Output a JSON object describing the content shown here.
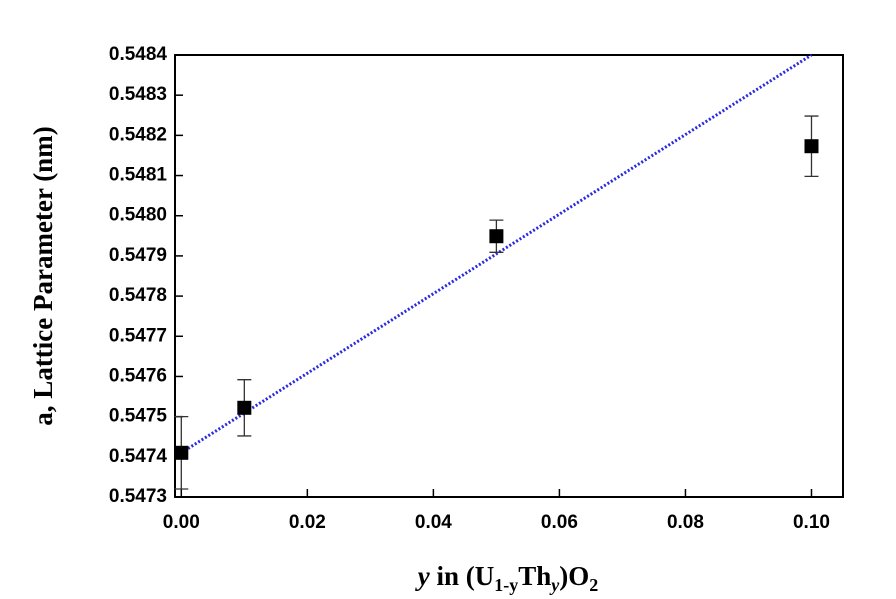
{
  "chart_data": {
    "type": "scatter",
    "y_label": "a, Lattice Parameter (nm)",
    "x_label": [
      "y",
      " in (U",
      "1-y",
      "Th",
      "y",
      ")O",
      "2"
    ],
    "xlim": [
      -0.001,
      0.105
    ],
    "xticks": [
      {
        "value": 0,
        "label": "0.00"
      },
      {
        "value": 0.02,
        "label": "0.02"
      },
      {
        "value": 0.04,
        "label": "0.04"
      },
      {
        "value": 0.06,
        "label": "0.06"
      },
      {
        "value": 0.08,
        "label": "0.08"
      },
      {
        "value": 0.1,
        "label": "0.10"
      }
    ],
    "ylim": [
      0.5473,
      0.5484
    ],
    "yticks": [
      0.5473,
      0.5474,
      0.5475,
      0.5476,
      0.5477,
      0.5478,
      0.5479,
      {
        "value": 0.548,
        "label": "0.5480"
      },
      0.5481,
      0.5482,
      0.5483,
      0.5484
    ],
    "series": [
      {
        "x": [
          0,
          0.01,
          0.05,
          0.1
        ],
        "values": [
          0.54741,
          0.547522,
          0.547949,
          0.548173
        ],
        "errors": [
          9e-05,
          7e-05,
          4e-05,
          7.5e-05
        ],
        "color": "#000000"
      }
    ],
    "fit_line": {
      "x": [
        0,
        0.1
      ],
      "values": [
        0.54741,
        0.5484
      ],
      "color": "#2a2ae0"
    }
  }
}
